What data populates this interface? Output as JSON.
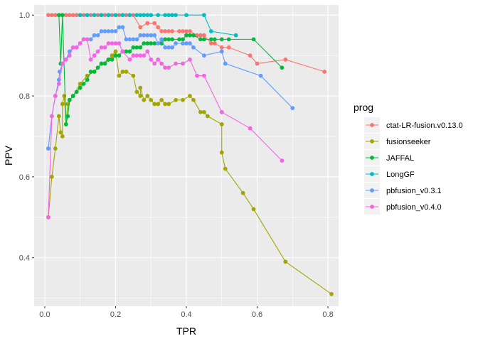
{
  "chart_data": {
    "type": "line",
    "xlabel": "TPR",
    "ylabel": "PPV",
    "xlim": [
      -0.03,
      0.83
    ],
    "ylim": [
      0.28,
      1.025
    ],
    "x_ticks": [
      {
        "value": 0.0,
        "label": "0.0"
      },
      {
        "value": 0.2,
        "label": "0.2"
      },
      {
        "value": 0.4,
        "label": "0.4"
      },
      {
        "value": 0.6,
        "label": "0.6"
      },
      {
        "value": 0.8,
        "label": "0.8"
      }
    ],
    "y_ticks": [
      {
        "value": 0.4,
        "label": "0.4"
      },
      {
        "value": 0.6,
        "label": "0.6"
      },
      {
        "value": 0.8,
        "label": "0.8"
      },
      {
        "value": 1.0,
        "label": "1.0"
      }
    ],
    "x_minor": [
      0.1,
      0.3,
      0.5,
      0.7
    ],
    "y_minor": [
      0.3,
      0.5,
      0.7,
      0.9
    ],
    "grid": true,
    "legend": {
      "title": "prog",
      "position": "right"
    },
    "series": [
      {
        "name": "ctat-LR-fusion.v0.13.0",
        "color": "#F8766D",
        "points": [
          [
            0.01,
            1.0
          ],
          [
            0.02,
            1.0
          ],
          [
            0.03,
            1.0
          ],
          [
            0.04,
            1.0
          ],
          [
            0.05,
            1.0
          ],
          [
            0.06,
            1.0
          ],
          [
            0.07,
            1.0
          ],
          [
            0.08,
            1.0
          ],
          [
            0.09,
            1.0
          ],
          [
            0.1,
            1.0
          ],
          [
            0.11,
            1.0
          ],
          [
            0.12,
            1.0
          ],
          [
            0.13,
            1.0
          ],
          [
            0.14,
            1.0
          ],
          [
            0.15,
            1.0
          ],
          [
            0.16,
            1.0
          ],
          [
            0.17,
            1.0
          ],
          [
            0.18,
            1.0
          ],
          [
            0.19,
            1.0
          ],
          [
            0.2,
            1.0
          ],
          [
            0.21,
            1.0
          ],
          [
            0.22,
            1.0
          ],
          [
            0.23,
            1.0
          ],
          [
            0.24,
            1.0
          ],
          [
            0.25,
            1.0
          ],
          [
            0.27,
            0.97
          ],
          [
            0.29,
            0.98
          ],
          [
            0.31,
            0.98
          ],
          [
            0.32,
            0.97
          ],
          [
            0.33,
            0.96
          ],
          [
            0.34,
            0.96
          ],
          [
            0.35,
            0.96
          ],
          [
            0.36,
            0.96
          ],
          [
            0.38,
            0.96
          ],
          [
            0.39,
            0.96
          ],
          [
            0.4,
            0.96
          ],
          [
            0.41,
            0.96
          ],
          [
            0.43,
            0.95
          ],
          [
            0.44,
            0.95
          ],
          [
            0.45,
            0.95
          ],
          [
            0.47,
            0.93
          ],
          [
            0.48,
            0.93
          ],
          [
            0.5,
            0.92
          ],
          [
            0.52,
            0.92
          ],
          [
            0.58,
            0.9
          ],
          [
            0.6,
            0.88
          ],
          [
            0.68,
            0.89
          ],
          [
            0.79,
            0.86
          ]
        ]
      },
      {
        "name": "fusionseeker",
        "color": "#A3A500",
        "points": [
          [
            0.01,
            0.5
          ],
          [
            0.02,
            0.6
          ],
          [
            0.03,
            0.67
          ],
          [
            0.04,
            0.75
          ],
          [
            0.045,
            0.71
          ],
          [
            0.05,
            0.7
          ],
          [
            0.05,
            0.78
          ],
          [
            0.055,
            0.8
          ],
          [
            0.06,
            0.73
          ],
          [
            0.065,
            0.78
          ],
          [
            0.07,
            0.79
          ],
          [
            0.08,
            0.8
          ],
          [
            0.1,
            0.83
          ],
          [
            0.12,
            0.85
          ],
          [
            0.14,
            0.86
          ],
          [
            0.16,
            0.88
          ],
          [
            0.18,
            0.89
          ],
          [
            0.19,
            0.9
          ],
          [
            0.2,
            0.91
          ],
          [
            0.21,
            0.85
          ],
          [
            0.22,
            0.86
          ],
          [
            0.23,
            0.86
          ],
          [
            0.25,
            0.85
          ],
          [
            0.26,
            0.81
          ],
          [
            0.27,
            0.8
          ],
          [
            0.27,
            0.82
          ],
          [
            0.28,
            0.79
          ],
          [
            0.29,
            0.8
          ],
          [
            0.3,
            0.79
          ],
          [
            0.31,
            0.78
          ],
          [
            0.32,
            0.78
          ],
          [
            0.33,
            0.79
          ],
          [
            0.34,
            0.78
          ],
          [
            0.35,
            0.78
          ],
          [
            0.37,
            0.79
          ],
          [
            0.39,
            0.79
          ],
          [
            0.41,
            0.8
          ],
          [
            0.42,
            0.79
          ],
          [
            0.44,
            0.76
          ],
          [
            0.45,
            0.76
          ],
          [
            0.46,
            0.75
          ],
          [
            0.5,
            0.73
          ],
          [
            0.5,
            0.66
          ],
          [
            0.51,
            0.62
          ],
          [
            0.56,
            0.56
          ],
          [
            0.59,
            0.52
          ],
          [
            0.68,
            0.39
          ],
          [
            0.81,
            0.31
          ]
        ]
      },
      {
        "name": "JAFFAL",
        "color": "#00BA38",
        "points": [
          [
            0.04,
            1.0
          ],
          [
            0.045,
            0.88
          ],
          [
            0.05,
            1.0
          ],
          [
            0.06,
            0.73
          ],
          [
            0.065,
            0.75
          ],
          [
            0.07,
            0.79
          ],
          [
            0.08,
            0.8
          ],
          [
            0.09,
            0.81
          ],
          [
            0.1,
            0.82
          ],
          [
            0.11,
            0.83
          ],
          [
            0.12,
            0.84
          ],
          [
            0.13,
            0.86
          ],
          [
            0.14,
            0.86
          ],
          [
            0.15,
            0.87
          ],
          [
            0.16,
            0.88
          ],
          [
            0.17,
            0.88
          ],
          [
            0.18,
            0.89
          ],
          [
            0.19,
            0.89
          ],
          [
            0.2,
            0.9
          ],
          [
            0.21,
            0.9
          ],
          [
            0.22,
            0.91
          ],
          [
            0.23,
            0.91
          ],
          [
            0.24,
            0.91
          ],
          [
            0.25,
            0.92
          ],
          [
            0.26,
            0.92
          ],
          [
            0.27,
            0.92
          ],
          [
            0.28,
            0.93
          ],
          [
            0.29,
            0.93
          ],
          [
            0.3,
            0.93
          ],
          [
            0.31,
            0.93
          ],
          [
            0.33,
            0.93
          ],
          [
            0.34,
            0.94
          ],
          [
            0.35,
            0.94
          ],
          [
            0.36,
            0.94
          ],
          [
            0.38,
            0.94
          ],
          [
            0.39,
            0.94
          ],
          [
            0.4,
            0.95
          ],
          [
            0.41,
            0.95
          ],
          [
            0.42,
            0.95
          ],
          [
            0.44,
            0.94
          ],
          [
            0.45,
            0.94
          ],
          [
            0.47,
            0.94
          ],
          [
            0.48,
            0.94
          ],
          [
            0.5,
            0.94
          ],
          [
            0.52,
            0.94
          ],
          [
            0.59,
            0.94
          ],
          [
            0.67,
            0.87
          ]
        ]
      },
      {
        "name": "LongGF",
        "color": "#00BFC4",
        "points": [
          [
            0.1,
            1.0
          ],
          [
            0.12,
            1.0
          ],
          [
            0.14,
            1.0
          ],
          [
            0.16,
            1.0
          ],
          [
            0.18,
            1.0
          ],
          [
            0.2,
            1.0
          ],
          [
            0.22,
            1.0
          ],
          [
            0.24,
            1.0
          ],
          [
            0.26,
            1.0
          ],
          [
            0.27,
            1.0
          ],
          [
            0.28,
            1.0
          ],
          [
            0.29,
            1.0
          ],
          [
            0.3,
            1.0
          ],
          [
            0.32,
            1.0
          ],
          [
            0.34,
            1.0
          ],
          [
            0.35,
            1.0
          ],
          [
            0.36,
            1.0
          ],
          [
            0.37,
            1.0
          ],
          [
            0.4,
            1.0
          ],
          [
            0.45,
            1.0
          ],
          [
            0.47,
            0.96
          ],
          [
            0.54,
            0.95
          ]
        ]
      },
      {
        "name": "pbfusion_v0.3.1",
        "color": "#619CFF",
        "points": [
          [
            0.01,
            0.67
          ],
          [
            0.02,
            0.75
          ],
          [
            0.03,
            0.8
          ],
          [
            0.04,
            0.84
          ],
          [
            0.042,
            0.86
          ],
          [
            0.05,
            0.88
          ],
          [
            0.06,
            0.89
          ],
          [
            0.07,
            0.91
          ],
          [
            0.08,
            0.92
          ],
          [
            0.09,
            0.92
          ],
          [
            0.1,
            0.93
          ],
          [
            0.11,
            0.94
          ],
          [
            0.12,
            0.94
          ],
          [
            0.13,
            0.94
          ],
          [
            0.14,
            0.95
          ],
          [
            0.15,
            0.95
          ],
          [
            0.16,
            0.96
          ],
          [
            0.17,
            0.96
          ],
          [
            0.18,
            0.96
          ],
          [
            0.19,
            0.96
          ],
          [
            0.2,
            0.96
          ],
          [
            0.21,
            0.97
          ],
          [
            0.22,
            0.97
          ],
          [
            0.23,
            0.94
          ],
          [
            0.24,
            0.94
          ],
          [
            0.25,
            0.94
          ],
          [
            0.26,
            0.94
          ],
          [
            0.27,
            0.95
          ],
          [
            0.28,
            0.95
          ],
          [
            0.29,
            0.95
          ],
          [
            0.3,
            0.95
          ],
          [
            0.31,
            0.95
          ],
          [
            0.32,
            0.93
          ],
          [
            0.33,
            0.94
          ],
          [
            0.34,
            0.92
          ],
          [
            0.35,
            0.92
          ],
          [
            0.36,
            0.92
          ],
          [
            0.37,
            0.93
          ],
          [
            0.39,
            0.93
          ],
          [
            0.4,
            0.93
          ],
          [
            0.41,
            0.93
          ],
          [
            0.42,
            0.92
          ],
          [
            0.45,
            0.9
          ],
          [
            0.5,
            0.91
          ],
          [
            0.51,
            0.88
          ],
          [
            0.61,
            0.85
          ],
          [
            0.7,
            0.77
          ]
        ]
      },
      {
        "name": "pbfusion_v0.4.0",
        "color": "#F564E3",
        "points": [
          [
            0.01,
            0.5
          ],
          [
            0.02,
            0.75
          ],
          [
            0.03,
            0.8
          ],
          [
            0.04,
            0.83
          ],
          [
            0.05,
            0.88
          ],
          [
            0.06,
            0.89
          ],
          [
            0.07,
            0.9
          ],
          [
            0.08,
            0.92
          ],
          [
            0.09,
            0.92
          ],
          [
            0.1,
            0.93
          ],
          [
            0.11,
            0.94
          ],
          [
            0.12,
            0.94
          ],
          [
            0.13,
            0.89
          ],
          [
            0.14,
            0.9
          ],
          [
            0.15,
            0.91
          ],
          [
            0.16,
            0.92
          ],
          [
            0.17,
            0.92
          ],
          [
            0.18,
            0.93
          ],
          [
            0.19,
            0.93
          ],
          [
            0.2,
            0.93
          ],
          [
            0.21,
            0.93
          ],
          [
            0.22,
            0.91
          ],
          [
            0.24,
            0.89
          ],
          [
            0.25,
            0.9
          ],
          [
            0.26,
            0.9
          ],
          [
            0.27,
            0.9
          ],
          [
            0.28,
            0.9
          ],
          [
            0.29,
            0.91
          ],
          [
            0.3,
            0.89
          ],
          [
            0.31,
            0.88
          ],
          [
            0.32,
            0.89
          ],
          [
            0.33,
            0.88
          ],
          [
            0.34,
            0.87
          ],
          [
            0.35,
            0.87
          ],
          [
            0.37,
            0.88
          ],
          [
            0.39,
            0.88
          ],
          [
            0.41,
            0.89
          ],
          [
            0.43,
            0.85
          ],
          [
            0.45,
            0.85
          ],
          [
            0.5,
            0.76
          ],
          [
            0.58,
            0.72
          ],
          [
            0.67,
            0.64
          ]
        ]
      }
    ]
  }
}
